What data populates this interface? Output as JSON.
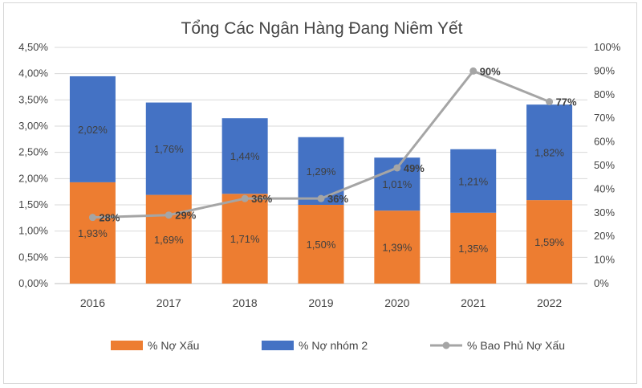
{
  "chart_data": {
    "type": "bar",
    "stacked": true,
    "title": "Tổng Các Ngân Hàng Đang Niêm Yết",
    "categories": [
      "2016",
      "2017",
      "2018",
      "2019",
      "2020",
      "2021",
      "2022"
    ],
    "y_left": {
      "range": [
        0,
        4.5
      ],
      "ticks": [
        "0,00%",
        "0,50%",
        "1,00%",
        "1,50%",
        "2,00%",
        "2,50%",
        "3,00%",
        "3,50%",
        "4,00%",
        "4,50%"
      ]
    },
    "y_right": {
      "range": [
        0,
        100
      ],
      "ticks": [
        "0%",
        "10%",
        "20%",
        "30%",
        "40%",
        "50%",
        "60%",
        "70%",
        "80%",
        "90%",
        "100%"
      ]
    },
    "series": [
      {
        "name": "% Nợ Xấu",
        "kind": "bar",
        "color": "#ED7D31",
        "values": [
          1.93,
          1.69,
          1.71,
          1.5,
          1.39,
          1.35,
          1.59
        ],
        "labels": [
          "1,93%",
          "1,69%",
          "1,71%",
          "1,50%",
          "1,39%",
          "1,35%",
          "1,59%"
        ]
      },
      {
        "name": "% Nợ nhóm 2",
        "kind": "bar",
        "color": "#4472C4",
        "values": [
          2.02,
          1.76,
          1.44,
          1.29,
          1.01,
          1.21,
          1.82
        ],
        "labels": [
          "2,02%",
          "1,76%",
          "1,44%",
          "1,29%",
          "1,01%",
          "1,21%",
          "1,82%"
        ]
      },
      {
        "name": "% Bao Phủ Nợ Xấu",
        "kind": "line",
        "axis": "right",
        "color": "#A5A5A5",
        "values": [
          28,
          29,
          36,
          36,
          49,
          90,
          77
        ],
        "labels": [
          "28%",
          "29%",
          "36%",
          "36%",
          "49%",
          "90%",
          "77%"
        ]
      }
    ],
    "legend_position": "bottom",
    "grid": true
  }
}
